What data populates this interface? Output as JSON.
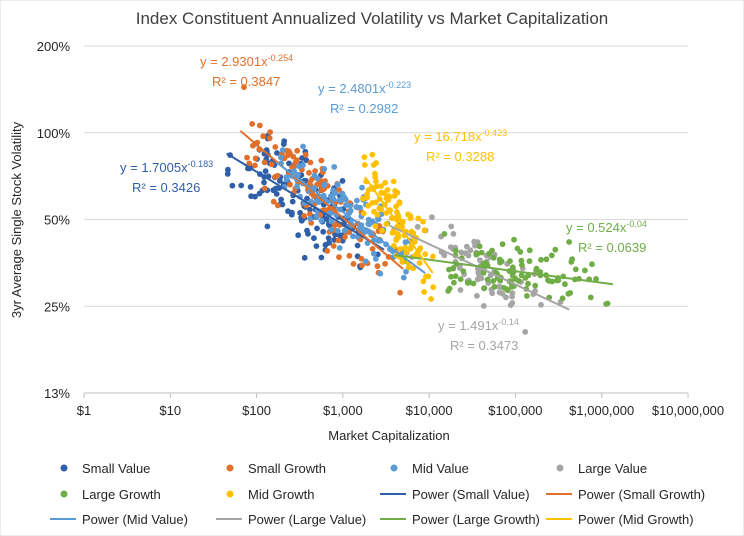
{
  "chart_data": {
    "type": "scatter",
    "title": "Index Constituent Annualized Volatility vs Market Capitalization",
    "xlabel": "Market Capitalization",
    "ylabel": "3yr  Average Single Stock Volatility",
    "xscale": "log",
    "yscale": "log",
    "xlim": [
      1,
      10000000
    ],
    "ylim": [
      0.125,
      2.0
    ],
    "x_ticks": [
      {
        "value": 1,
        "label": "$1"
      },
      {
        "value": 10,
        "label": "$10"
      },
      {
        "value": 100,
        "label": "$100"
      },
      {
        "value": 1000,
        "label": "$1,000"
      },
      {
        "value": 10000,
        "label": "$10,000"
      },
      {
        "value": 100000,
        "label": "$100,000"
      },
      {
        "value": 1000000,
        "label": "$1,000,000"
      },
      {
        "value": 10000000,
        "label": "$10,000,000"
      }
    ],
    "y_ticks": [
      {
        "value": 0.125,
        "label": "13%"
      },
      {
        "value": 0.25,
        "label": "25%"
      },
      {
        "value": 0.5,
        "label": "50%"
      },
      {
        "value": 1.0,
        "label": "100%"
      },
      {
        "value": 2.0,
        "label": "200%"
      }
    ],
    "grid": "horizontal",
    "legend_position": "bottom",
    "series": [
      {
        "name": "Small Value",
        "color": "#2E5FA8",
        "seed": 11,
        "n": 150,
        "x_range": [
          40,
          3000
        ],
        "fit": {
          "a": 1.7005,
          "b": -0.183
        },
        "noise": 0.3,
        "fit_line": {
          "x_range": [
            45,
            3000
          ],
          "name": "Power (Small Value)"
        },
        "equation": {
          "text": "y = 1.7005x",
          "exp": "-0.183",
          "r2": "R² = 0.3426"
        }
      },
      {
        "name": "Small Growth",
        "color": "#E0702B",
        "seed": 23,
        "n": 130,
        "x_range": [
          60,
          5000
        ],
        "fit": {
          "a": 2.9301,
          "b": -0.254
        },
        "noise": 0.28,
        "fit_line": {
          "x_range": [
            65,
            5000
          ],
          "name": "Power (Small Growth)"
        },
        "equation": {
          "text": "y = 2.9301x",
          "exp": "-0.254",
          "r2": "R² = 0.3847"
        }
      },
      {
        "name": "Mid Value",
        "color": "#5B9BD5",
        "seed": 37,
        "n": 120,
        "x_range": [
          150,
          9000
        ],
        "fit": {
          "a": 2.4801,
          "b": -0.223
        },
        "noise": 0.24,
        "fit_line": {
          "x_range": [
            170,
            9000
          ],
          "name": "Power (Mid Value)"
        },
        "equation": {
          "text": "y = 2.4801x",
          "exp": "-0.223",
          "r2": "R² = 0.2982"
        }
      },
      {
        "name": "Large Value",
        "color": "#A5A5A5",
        "seed": 41,
        "n": 75,
        "x_range": [
          4000,
          400000
        ],
        "fit": {
          "a": 1.491,
          "b": -0.14
        },
        "noise": 0.22,
        "fit_line": {
          "x_range": [
            3500,
            420000
          ],
          "name": "Power (Large Value)"
        },
        "equation": {
          "text": "y = 1.491x",
          "exp": "-0.14",
          "r2": "R² = 0.3473"
        }
      },
      {
        "name": "Large Growth",
        "color": "#70AD47",
        "seed": 53,
        "n": 110,
        "x_range": [
          8000,
          1400000
        ],
        "fit": {
          "a": 0.524,
          "b": -0.04
        },
        "noise": 0.22,
        "fit_line": {
          "x_range": [
            4000,
            1350000
          ],
          "name": "Power (Large Growth)"
        },
        "equation": {
          "text": "y = 0.524x",
          "exp": "-0.04",
          "r2": "R² = 0.0639"
        }
      },
      {
        "name": "Mid Growth",
        "color": "#FFC000",
        "seed": 67,
        "n": 110,
        "x_range": [
          1500,
          12000
        ],
        "fit": {
          "a": 16.718,
          "b": -0.423
        },
        "noise": 0.26,
        "fit_line": {
          "x_range": [
            1800,
            11000
          ],
          "name": "Power (Mid Growth)"
        },
        "equation": {
          "text": "y = 16.718x",
          "exp": "-0.423",
          "r2": "R² = 0.3288"
        }
      }
    ],
    "legend_order": [
      {
        "kind": "marker",
        "series": 0,
        "label": "Small Value"
      },
      {
        "kind": "marker",
        "series": 1,
        "label": "Small Growth"
      },
      {
        "kind": "marker",
        "series": 2,
        "label": "Mid Value"
      },
      {
        "kind": "marker",
        "series": 3,
        "label": "Large Value"
      },
      {
        "kind": "marker",
        "series": 4,
        "label": "Large Growth"
      },
      {
        "kind": "marker",
        "series": 5,
        "label": "Mid Growth"
      },
      {
        "kind": "line",
        "series": 0,
        "label": "Power (Small Value)"
      },
      {
        "kind": "line",
        "series": 1,
        "label": "Power (Small Growth)"
      },
      {
        "kind": "line",
        "series": 2,
        "label": "Power (Mid Value)"
      },
      {
        "kind": "line",
        "series": 3,
        "label": "Power (Large Value)"
      },
      {
        "kind": "line",
        "series": 4,
        "label": "Power (Large Growth)"
      },
      {
        "kind": "line",
        "series": 5,
        "label": "Power (Mid Growth)"
      }
    ]
  }
}
